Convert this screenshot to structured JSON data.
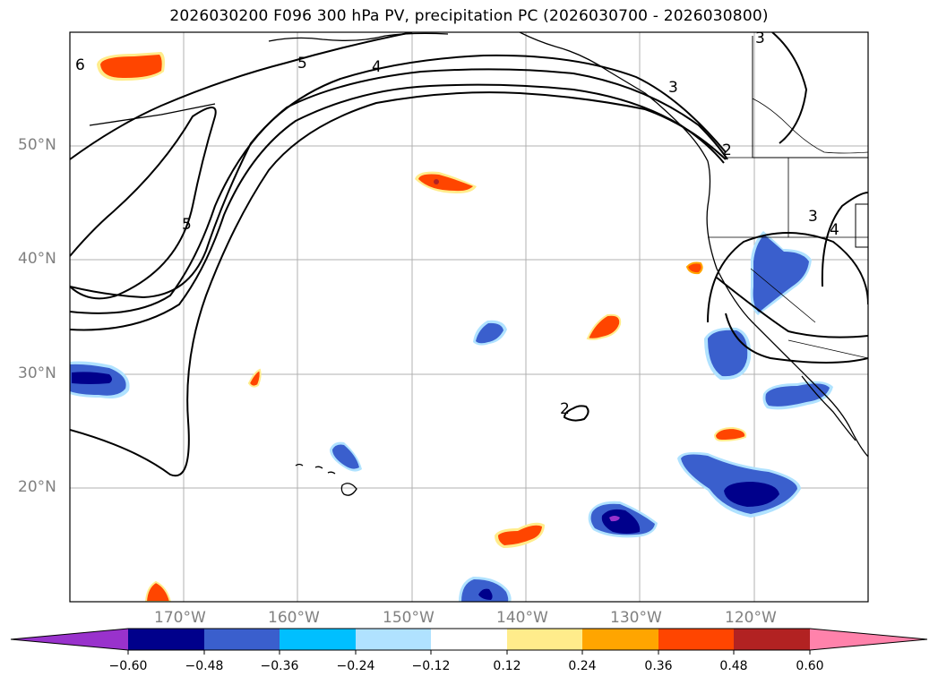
{
  "title": "2026030200 F096 300 hPa PV, precipitation PC (2026030700 - 2026030800)",
  "lat_labels": [
    "50°N",
    "40°N",
    "30°N",
    "20°N"
  ],
  "lon_labels": [
    "170°W",
    "160°W",
    "150°W",
    "140°W",
    "130°W",
    "120°W"
  ],
  "contour_labels": [
    "6",
    "5",
    "4",
    "5",
    "3",
    "3",
    "2",
    "3",
    "4",
    "2"
  ],
  "colorbar": {
    "ticks": [
      "−0.60",
      "−0.48",
      "−0.36",
      "−0.24",
      "−0.12",
      "0.12",
      "0.24",
      "0.36",
      "0.48",
      "0.60"
    ],
    "colors": [
      "#9932CC",
      "#00008B",
      "#3A5FCD",
      "#00BFFF",
      "#B0E2FF",
      "#FFFFFF",
      "#FFEC8B",
      "#FFA500",
      "#FF4500",
      "#B22222",
      "#FF82AB"
    ]
  },
  "map_colors": {
    "dark_blue": "#00008B",
    "mid_blue": "#3A5FCD",
    "cyan": "#00BFFF",
    "light_blue": "#B0E2FF",
    "purple": "#9932CC",
    "yellow": "#FFEC8B",
    "orange": "#FFA500",
    "red_orange": "#FF4500",
    "dark_red": "#B22222"
  }
}
